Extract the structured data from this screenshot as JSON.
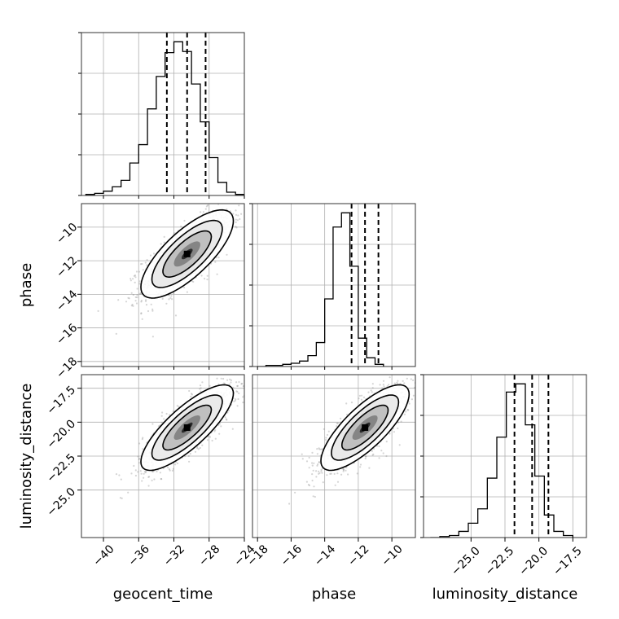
{
  "chart_data": {
    "type": "corner",
    "grid": true,
    "parameters": [
      {
        "name": "geocent_time",
        "label": "geocent_time",
        "range": [
          -42.5,
          -24
        ],
        "ticks": [
          -40,
          -36,
          -32,
          -28,
          -24
        ],
        "quantiles": [
          -32.8,
          -30.5,
          -28.4
        ]
      },
      {
        "name": "phase",
        "label": "phase",
        "range": [
          -18.3,
          -8.6
        ],
        "ticks": [
          -18,
          -16,
          -14,
          -12,
          -10
        ],
        "quantiles": [
          -12.4,
          -11.6,
          -10.8
        ]
      },
      {
        "name": "luminosity_distance",
        "label": "luminosity_distance",
        "range": [
          -28.5,
          -16.5
        ],
        "ticks": [
          -25.0,
          -22.5,
          -20.0,
          -17.5
        ],
        "tick_labels": [
          "−25.0",
          "−22.5",
          "−20.0",
          "−17.5"
        ],
        "quantiles": [
          -21.8,
          -20.5,
          -19.3
        ]
      }
    ],
    "tick_labels_main": {
      "geocent_time": [
        "−40",
        "−36",
        "−32",
        "−28",
        "−24"
      ],
      "phase": [
        "−18",
        "−16",
        "−14",
        "−12",
        "−10"
      ]
    },
    "histograms": {
      "geocent_time": {
        "bin_edges_start": -42,
        "bin_width": 1,
        "counts": [
          1,
          2,
          4,
          8,
          14,
          30,
          47,
          80,
          110,
          132,
          142,
          133,
          103,
          68,
          35,
          12,
          3,
          1
        ]
      },
      "phase": {
        "bin_edges_start": -18,
        "bin_width": 0.5,
        "counts": [
          0,
          1,
          1,
          2,
          3,
          5,
          10,
          22,
          62,
          128,
          141,
          92,
          26,
          8,
          2
        ]
      },
      "luminosity_distance": {
        "bin_edges_start": -28,
        "bin_width": 0.7,
        "counts": [
          0,
          1,
          2,
          6,
          14,
          28,
          58,
          98,
          142,
          150,
          110,
          60,
          22,
          6,
          2
        ]
      }
    },
    "pairs": [
      {
        "x": "geocent_time",
        "y": "phase",
        "center": [
          -30.5,
          -11.6
        ],
        "sigma": [
          2.5,
          1.25
        ],
        "rho": 0.75
      },
      {
        "x": "geocent_time",
        "y": "luminosity_distance",
        "center": [
          -30.5,
          -20.4
        ],
        "sigma": [
          2.5,
          1.5
        ],
        "rho": 0.8
      },
      {
        "x": "phase",
        "y": "luminosity_distance",
        "center": [
          -11.6,
          -20.4
        ],
        "sigma": [
          1.25,
          1.5
        ],
        "rho": 0.78
      }
    ]
  }
}
